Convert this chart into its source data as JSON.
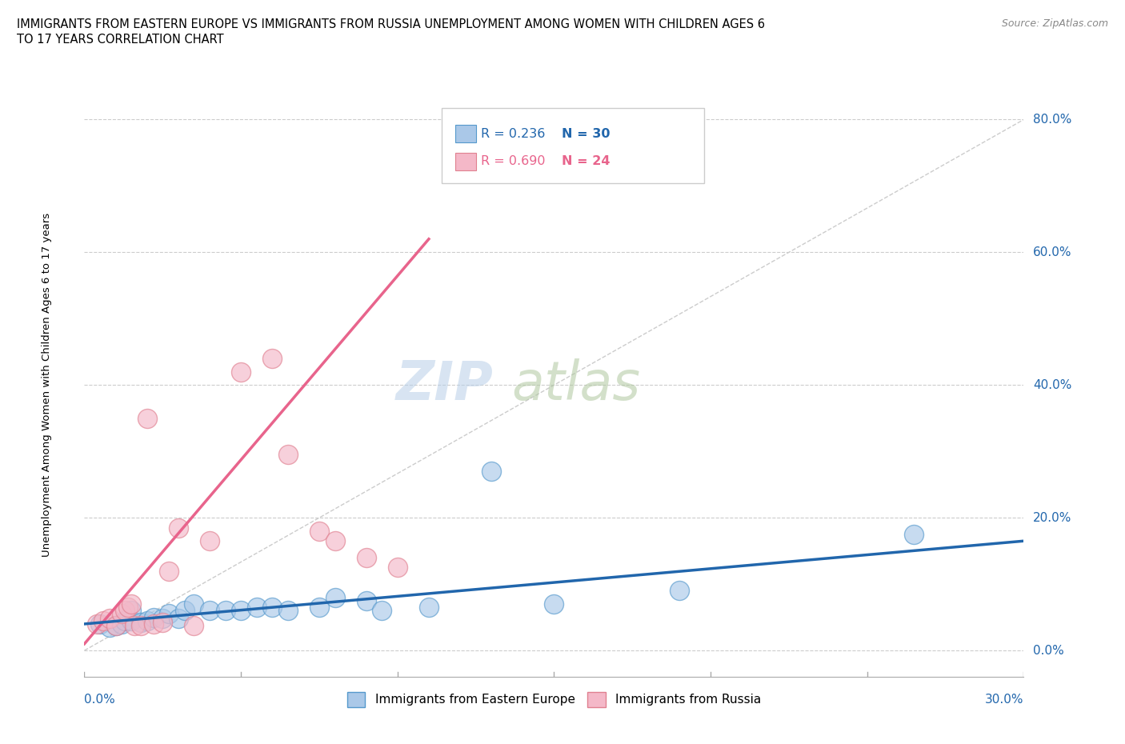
{
  "title_line1": "IMMIGRANTS FROM EASTERN EUROPE VS IMMIGRANTS FROM RUSSIA UNEMPLOYMENT AMONG WOMEN WITH CHILDREN AGES 6",
  "title_line2": "TO 17 YEARS CORRELATION CHART",
  "source": "Source: ZipAtlas.com",
  "ylabel": "Unemployment Among Women with Children Ages 6 to 17 years",
  "r_eastern": 0.236,
  "n_eastern": 30,
  "r_russia": 0.69,
  "n_russia": 24,
  "xmin": 0.0,
  "xmax": 0.3,
  "ymin": -0.04,
  "ymax": 0.84,
  "watermark": "ZIPatlas",
  "blue_scatter_color": "#aac8e8",
  "pink_scatter_color": "#f4b8c8",
  "blue_line_color": "#2166ac",
  "pink_line_color": "#e8648c",
  "diagonal_color": "#cccccc",
  "legend_box_color": "#eeeeee",
  "eastern_europe_x": [
    0.005,
    0.008,
    0.01,
    0.012,
    0.013,
    0.015,
    0.015,
    0.018,
    0.02,
    0.022,
    0.025,
    0.027,
    0.03,
    0.032,
    0.035,
    0.04,
    0.045,
    0.05,
    0.055,
    0.06,
    0.065,
    0.075,
    0.08,
    0.09,
    0.095,
    0.11,
    0.13,
    0.15,
    0.19,
    0.265
  ],
  "eastern_europe_y": [
    0.04,
    0.035,
    0.038,
    0.04,
    0.045,
    0.045,
    0.06,
    0.042,
    0.045,
    0.05,
    0.048,
    0.055,
    0.048,
    0.06,
    0.07,
    0.06,
    0.06,
    0.06,
    0.065,
    0.065,
    0.06,
    0.065,
    0.08,
    0.075,
    0.06,
    0.065,
    0.27,
    0.07,
    0.09,
    0.175
  ],
  "russia_x": [
    0.004,
    0.006,
    0.008,
    0.01,
    0.012,
    0.013,
    0.014,
    0.015,
    0.016,
    0.018,
    0.02,
    0.022,
    0.025,
    0.027,
    0.03,
    0.035,
    0.04,
    0.05,
    0.06,
    0.065,
    0.075,
    0.08,
    0.09,
    0.1
  ],
  "russia_y": [
    0.04,
    0.045,
    0.048,
    0.038,
    0.055,
    0.06,
    0.065,
    0.07,
    0.038,
    0.038,
    0.35,
    0.04,
    0.042,
    0.12,
    0.185,
    0.038,
    0.165,
    0.42,
    0.44,
    0.295,
    0.18,
    0.165,
    0.14,
    0.125
  ],
  "ru_trendline_x0": 0.0,
  "ru_trendline_y0": 0.01,
  "ru_trendline_x1": 0.11,
  "ru_trendline_y1": 0.62,
  "ee_trendline_x0": 0.0,
  "ee_trendline_y0": 0.04,
  "ee_trendline_x1": 0.3,
  "ee_trendline_y1": 0.165
}
